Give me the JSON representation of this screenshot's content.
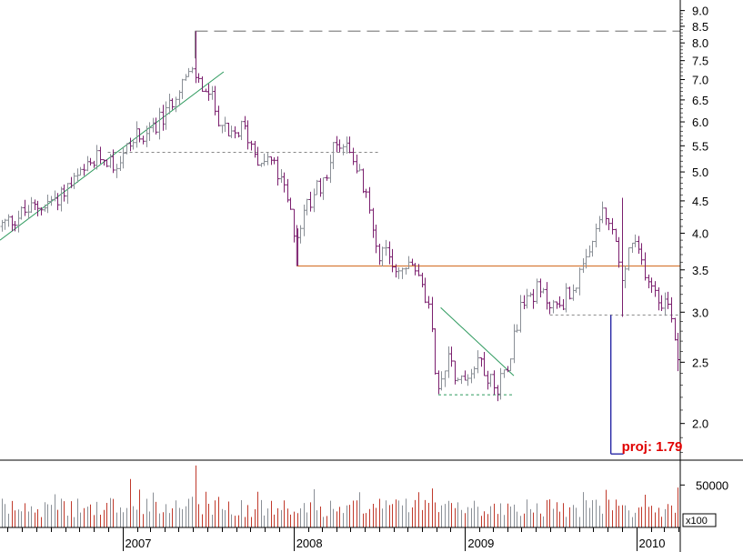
{
  "chart_data": {
    "type": "ohlc",
    "price_axis": {
      "scale": "log",
      "ticks": [
        2.0,
        2.5,
        3.0,
        3.5,
        4.0,
        4.5,
        5.0,
        5.5,
        6.0,
        6.5,
        7.0,
        7.5,
        8.0,
        8.5,
        9.0
      ],
      "tick_labels": [
        "2.0",
        "2.5",
        "3.0",
        "3.5",
        "4.0",
        "4.5",
        "5.0",
        "5.5",
        "6.0",
        "6.5",
        "7.0",
        "7.5",
        "8.0",
        "8.5",
        "9.0"
      ],
      "range": [
        1.75,
        9.2
      ]
    },
    "time_axis": {
      "start": "2006-04-15",
      "end": "2010-04-05",
      "years": [
        {
          "label": "2007",
          "date": "2007-01-01"
        },
        {
          "label": "2008",
          "date": "2008-01-01"
        },
        {
          "label": "2009",
          "date": "2009-01-01"
        },
        {
          "label": "2010",
          "date": "2010-01-01"
        }
      ]
    },
    "volume_axis": {
      "tick": 50000,
      "tick_label": "50000",
      "multiplier_label": "x100",
      "range": [
        0,
        75000
      ]
    },
    "price_path": [
      [
        "2006-04-15",
        4.1
      ],
      [
        "2006-06-01",
        4.3
      ],
      [
        "2006-08-01",
        4.5
      ],
      [
        "2006-10-01",
        4.9
      ],
      [
        "2006-11-15",
        5.3
      ],
      [
        "2006-12-20",
        5.15
      ],
      [
        "2007-01-20",
        5.6
      ],
      [
        "2007-03-01",
        5.9
      ],
      [
        "2007-04-01",
        6.1
      ],
      [
        "2007-05-01",
        6.9
      ],
      [
        "2007-06-01",
        7.15
      ],
      [
        "2007-06-20",
        6.8
      ],
      [
        "2007-07-10",
        6.5
      ],
      [
        "2007-08-15",
        5.6
      ],
      [
        "2007-09-15",
        5.9
      ],
      [
        "2007-10-15",
        5.3
      ],
      [
        "2007-11-15",
        5.2
      ],
      [
        "2007-12-15",
        4.6
      ],
      [
        "2008-01-05",
        3.95
      ],
      [
        "2008-02-01",
        4.5
      ],
      [
        "2008-03-01",
        4.8
      ],
      [
        "2008-04-01",
        5.6
      ],
      [
        "2008-05-01",
        5.5
      ],
      [
        "2008-06-01",
        4.6
      ],
      [
        "2008-07-01",
        3.75
      ],
      [
        "2008-08-15",
        3.5
      ],
      [
        "2008-09-15",
        3.55
      ],
      [
        "2008-10-15",
        3.0
      ],
      [
        "2008-11-05",
        2.22
      ],
      [
        "2008-11-25",
        2.6
      ],
      [
        "2008-12-20",
        2.3
      ],
      [
        "2009-02-01",
        2.55
      ],
      [
        "2009-03-05",
        2.25
      ],
      [
        "2009-04-01",
        2.5
      ],
      [
        "2009-05-01",
        3.1
      ],
      [
        "2009-06-01",
        3.25
      ],
      [
        "2009-07-15",
        3.05
      ],
      [
        "2009-08-15",
        3.25
      ],
      [
        "2009-09-20",
        3.6
      ],
      [
        "2009-10-15",
        4.3
      ],
      [
        "2009-11-15",
        4.0
      ],
      [
        "2009-12-01",
        3.3
      ],
      [
        "2009-12-20",
        3.9
      ],
      [
        "2010-01-20",
        3.5
      ],
      [
        "2010-02-15",
        3.2
      ],
      [
        "2010-03-15",
        3.05
      ],
      [
        "2010-04-01",
        2.5
      ]
    ],
    "price_spikes": [
      {
        "date": "2007-06-05",
        "high": 8.35
      },
      {
        "date": "2008-01-08",
        "low": 3.55
      },
      {
        "date": "2009-11-30",
        "low": 2.95,
        "high": 4.55
      },
      {
        "date": "2010-03-28",
        "low": 2.42
      }
    ],
    "volume_spikes": [
      {
        "date": "2007-01-10",
        "value": 57000
      },
      {
        "date": "2007-06-05",
        "value": 73000
      },
      {
        "date": "2008-02-10",
        "value": 45000
      },
      {
        "date": "2008-10-20",
        "value": 46000
      },
      {
        "date": "2010-03-30",
        "value": 47000
      }
    ],
    "annotations": [
      {
        "kind": "horizontal-dashed",
        "price": 8.35,
        "from": "2007-06-05",
        "to": "2010-04-05",
        "color": "#888888"
      },
      {
        "kind": "horizontal-dotted",
        "price": 5.37,
        "from": "2006-12-01",
        "to": "2008-07-01",
        "color": "#888888"
      },
      {
        "kind": "trendline",
        "from": [
          "2006-04-15",
          3.9
        ],
        "to": [
          "2007-08-05",
          7.2
        ],
        "color": "#2e9a5e"
      },
      {
        "kind": "horizontal-solid",
        "price": 3.55,
        "from": "2008-01-08",
        "to": "2010-04-05",
        "color": "#d2691e"
      },
      {
        "kind": "trendline",
        "from": [
          "2008-11-10",
          3.05
        ],
        "to": [
          "2009-04-15",
          2.38
        ],
        "color": "#2e9a5e"
      },
      {
        "kind": "horizontal-dotted",
        "price": 2.22,
        "from": "2008-11-05",
        "to": "2009-04-15",
        "color": "#2e9a5e"
      },
      {
        "kind": "horizontal-dotted",
        "price": 2.97,
        "from": "2009-07-01",
        "to": "2010-04-05",
        "color": "#888888"
      },
      {
        "kind": "projection",
        "price_from": 2.97,
        "price_to": 1.79,
        "date": "2009-11-08",
        "to_date": "2009-12-05",
        "color": "#1a1aa0"
      }
    ],
    "projection_label": "proj: 1.79",
    "colors": {
      "bar_up": "#8a8f96",
      "bar_down": "#7b1f6e",
      "volume_up": "#8a8f96",
      "volume_down": "#c0392b",
      "projection_text": "#e00000"
    }
  }
}
